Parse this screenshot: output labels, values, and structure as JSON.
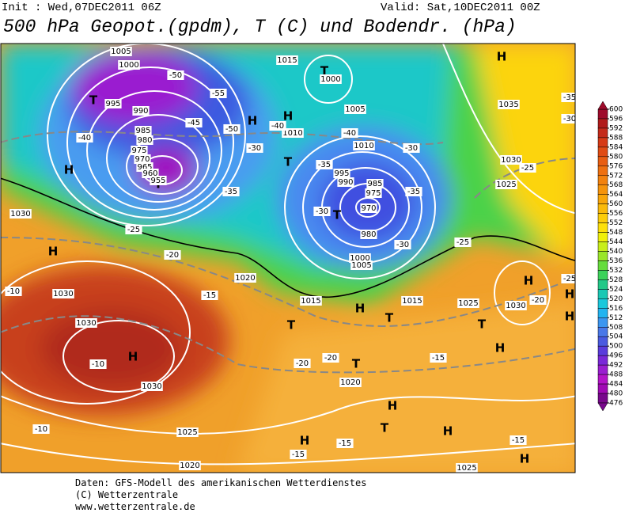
{
  "header": {
    "init": "Init : Wed,07DEC2011 06Z",
    "valid": "Valid: Sat,10DEC2011 00Z",
    "title": "500 hPa Geopot.(gpdm), T (C) und Bodendr. (hPa)"
  },
  "map": {
    "labels": [
      "H",
      "H",
      "H",
      "H",
      "H",
      "H",
      "H",
      "H",
      "H",
      "H",
      "H",
      "H",
      "H",
      "H",
      "H",
      "T",
      "T",
      "T",
      "T",
      "T",
      "T",
      "T",
      "T",
      "T",
      "T",
      "1005",
      "1000",
      "995",
      "990",
      "985",
      "980",
      "975",
      "970",
      "965",
      "960",
      "955",
      "1015",
      "1000",
      "1005",
      "1010",
      "1010",
      "995",
      "990",
      "985",
      "975",
      "970",
      "980",
      "1000",
      "1005",
      "1030",
      "1030",
      "1030",
      "1030",
      "1025",
      "1020",
      "1020",
      "1015",
      "1020",
      "1015",
      "1025",
      "1030",
      "1035",
      "1030",
      "1025",
      "1025",
      "-40",
      "-35",
      "-30",
      "-35",
      "-30",
      "-30",
      "-25",
      "-20",
      "-15",
      "-10",
      "-10",
      "-10",
      "-20",
      "-20",
      "-15",
      "-15",
      "-15",
      "-15",
      "-20",
      "-25",
      "-35",
      "-30",
      "-40",
      "-50",
      "-45",
      "-40",
      "-25",
      "-25",
      "-50",
      "-55",
      "-30",
      "-35"
    ]
  },
  "colorbar": {
    "ticks": [
      600,
      596,
      592,
      588,
      584,
      580,
      576,
      572,
      568,
      564,
      560,
      556,
      552,
      548,
      544,
      540,
      536,
      532,
      528,
      524,
      520,
      516,
      512,
      508,
      504,
      500,
      496,
      492,
      488,
      484,
      480,
      476
    ],
    "colors": [
      "#9e0b2b",
      "#b01a1a",
      "#c42a1a",
      "#d63a16",
      "#e04c14",
      "#e85e12",
      "#ee7010",
      "#f2820e",
      "#f5940c",
      "#f8a60a",
      "#faba0a",
      "#fccd0a",
      "#fde00a",
      "#f0f00a",
      "#c8ee1a",
      "#9ae62a",
      "#66dc3c",
      "#3cd25a",
      "#22c888",
      "#1ac8b4",
      "#1ac8dc",
      "#22b4f0",
      "#3c96f0",
      "#4a78e8",
      "#4a5ae0",
      "#5a3cdc",
      "#7a28d8",
      "#9a1ed0",
      "#b414c8",
      "#a00ab4",
      "#78088c"
    ]
  },
  "footer": [
    "Daten: GFS-Modell des amerikanischen Wetterdienstes",
    "(C) Wetterzentrale",
    "www.wetterzentrale.de"
  ]
}
